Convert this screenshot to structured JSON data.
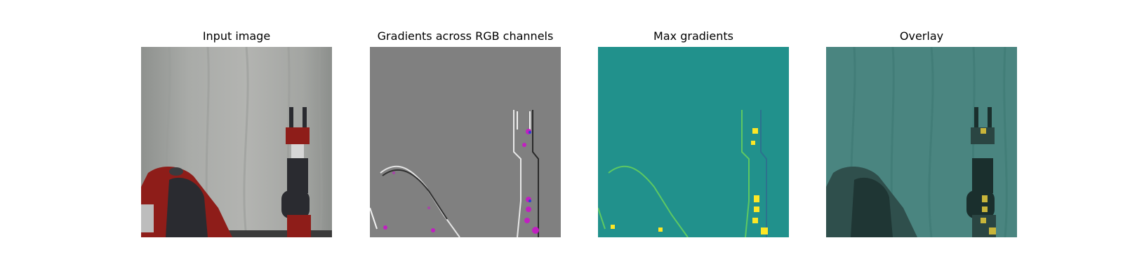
{
  "panels": [
    {
      "title": "Input image"
    },
    {
      "title": "Gradients across RGB channels"
    },
    {
      "title": "Max gradients"
    },
    {
      "title": "Overlay"
    }
  ],
  "colors": {
    "background": "#ffffff",
    "curtain": "#a6a8a4",
    "robot_red": "#8e1d19",
    "robot_dark": "#2a2b30",
    "gradient_gray": "#808080",
    "gradient_highlight": "#c020c0",
    "viridis_teal": "#21918c",
    "viridis_yellow": "#fde725",
    "overlay_teal": "#3f7f7b"
  }
}
